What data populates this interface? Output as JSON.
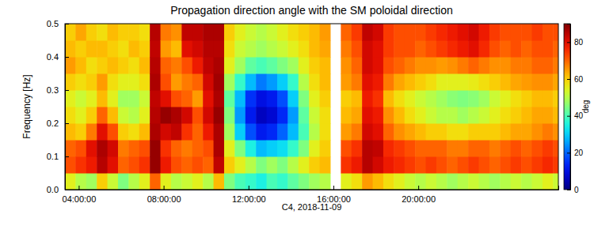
{
  "chart_data": {
    "type": "heatmap",
    "title": "Propagation direction angle with the SM poloidal direction",
    "x_label": "C4, 2018-11-09",
    "y_label": "Frequency [Hz]",
    "x": [
      3.35,
      3.85,
      4.35,
      4.85,
      5.35,
      5.85,
      6.35,
      6.85,
      7.35,
      7.85,
      8.35,
      8.85,
      9.35,
      9.85,
      10.35,
      10.85,
      11.35,
      11.85,
      12.35,
      12.85,
      13.35,
      13.85,
      14.35,
      14.85,
      15.35,
      15.85,
      16.35,
      16.85,
      17.35,
      17.85,
      18.35,
      18.85,
      19.35,
      19.85,
      20.35,
      20.85,
      21.35,
      21.85,
      22.35,
      22.85,
      23.35,
      23.85,
      24.35,
      24.85,
      25.35,
      25.85,
      26.35
    ],
    "y": [
      0,
      0.05,
      0.1,
      0.15,
      0.2,
      0.25,
      0.3,
      0.35,
      0.4,
      0.45
    ],
    "values": [
      [
        55,
        72,
        70,
        62,
        58,
        55,
        60,
        65,
        62,
        60
      ],
      [
        50,
        75,
        72,
        60,
        55,
        52,
        58,
        62,
        60,
        64
      ],
      [
        48,
        78,
        80,
        68,
        60,
        55,
        60,
        58,
        62,
        60
      ],
      [
        60,
        85,
        86,
        80,
        70,
        62,
        65,
        60,
        62,
        58
      ],
      [
        52,
        80,
        82,
        72,
        62,
        55,
        58,
        62,
        60,
        62
      ],
      [
        45,
        70,
        68,
        60,
        52,
        48,
        55,
        60,
        58,
        60
      ],
      [
        50,
        72,
        70,
        58,
        50,
        48,
        55,
        58,
        62,
        60
      ],
      [
        55,
        75,
        72,
        62,
        55,
        52,
        58,
        62,
        60,
        58
      ],
      [
        70,
        88,
        88,
        86,
        85,
        84,
        86,
        85,
        84,
        85
      ],
      [
        55,
        78,
        75,
        82,
        88,
        80,
        72,
        70,
        65,
        68
      ],
      [
        50,
        72,
        70,
        84,
        86,
        72,
        65,
        68,
        62,
        66
      ],
      [
        52,
        70,
        68,
        75,
        82,
        70,
        68,
        72,
        80,
        84
      ],
      [
        55,
        72,
        70,
        70,
        72,
        65,
        70,
        78,
        82,
        84
      ],
      [
        50,
        70,
        72,
        78,
        82,
        80,
        82,
        84,
        85,
        86
      ],
      [
        62,
        84,
        86,
        86,
        88,
        86,
        87,
        86,
        85,
        86
      ],
      [
        45,
        60,
        55,
        48,
        45,
        42,
        48,
        55,
        58,
        60
      ],
      [
        40,
        55,
        45,
        30,
        25,
        28,
        38,
        48,
        52,
        55
      ],
      [
        38,
        50,
        35,
        18,
        12,
        15,
        28,
        42,
        50,
        52
      ],
      [
        35,
        45,
        28,
        12,
        6,
        10,
        22,
        40,
        48,
        50
      ],
      [
        40,
        48,
        30,
        14,
        8,
        12,
        25,
        42,
        50,
        52
      ],
      [
        38,
        45,
        32,
        20,
        14,
        18,
        30,
        45,
        52,
        55
      ],
      [
        42,
        50,
        38,
        28,
        25,
        30,
        38,
        48,
        55,
        58
      ],
      [
        45,
        55,
        45,
        40,
        42,
        45,
        50,
        55,
        58,
        60
      ],
      [
        48,
        60,
        55,
        50,
        52,
        55,
        58,
        60,
        62,
        62
      ],
      [
        50,
        62,
        60,
        58,
        58,
        60,
        62,
        62,
        64,
        65
      ],
      [
        null,
        null,
        null,
        null,
        null,
        null,
        null,
        null,
        null,
        null
      ],
      [
        55,
        75,
        72,
        65,
        62,
        60,
        65,
        66,
        68,
        70
      ],
      [
        58,
        78,
        75,
        68,
        64,
        62,
        68,
        70,
        72,
        74
      ],
      [
        65,
        85,
        85,
        82,
        80,
        78,
        80,
        82,
        82,
        84
      ],
      [
        62,
        82,
        84,
        80,
        78,
        75,
        78,
        80,
        80,
        82
      ],
      [
        58,
        78,
        76,
        70,
        66,
        62,
        68,
        72,
        74,
        74
      ],
      [
        55,
        76,
        74,
        66,
        62,
        58,
        64,
        70,
        72,
        72
      ],
      [
        52,
        74,
        72,
        64,
        58,
        55,
        62,
        68,
        72,
        72
      ],
      [
        50,
        72,
        70,
        62,
        55,
        52,
        60,
        66,
        70,
        72
      ],
      [
        52,
        74,
        70,
        60,
        52,
        50,
        58,
        66,
        72,
        74
      ],
      [
        50,
        72,
        70,
        60,
        50,
        48,
        55,
        65,
        74,
        76
      ],
      [
        48,
        70,
        68,
        58,
        50,
        46,
        55,
        66,
        76,
        78
      ],
      [
        50,
        72,
        68,
        58,
        48,
        45,
        55,
        68,
        78,
        80
      ],
      [
        52,
        74,
        70,
        60,
        50,
        46,
        56,
        70,
        80,
        82
      ],
      [
        50,
        72,
        70,
        60,
        52,
        48,
        58,
        68,
        76,
        78
      ],
      [
        48,
        70,
        68,
        60,
        55,
        52,
        60,
        66,
        72,
        74
      ],
      [
        50,
        72,
        70,
        62,
        58,
        55,
        62,
        66,
        70,
        72
      ],
      [
        52,
        74,
        72,
        64,
        60,
        58,
        64,
        68,
        72,
        72
      ],
      [
        50,
        72,
        70,
        64,
        62,
        60,
        65,
        68,
        70,
        72
      ],
      [
        52,
        74,
        72,
        66,
        64,
        62,
        66,
        70,
        72,
        74
      ],
      [
        55,
        76,
        74,
        68,
        64,
        62,
        66,
        70,
        72,
        72
      ],
      [
        52,
        74,
        72,
        66,
        62,
        60,
        64,
        68,
        70,
        72
      ]
    ],
    "xlim": [
      3.35,
      26.6
    ],
    "xticks": [
      {
        "value": 4,
        "label": "04:00:00"
      },
      {
        "value": 8,
        "label": "08:00:00"
      },
      {
        "value": 12,
        "label": "12:00:00"
      },
      {
        "value": 16,
        "label": "16:00:00"
      },
      {
        "value": 20,
        "label": "20:00:00"
      }
    ],
    "ylim": [
      0,
      0.5
    ],
    "yticks": [
      {
        "value": 0,
        "label": "0.0"
      },
      0.1,
      0.2,
      0.3,
      0.4,
      0.5
    ],
    "colorbar": {
      "label": "deg",
      "range": [
        0,
        90
      ],
      "ticks": [
        0,
        20,
        40,
        60,
        80
      ]
    }
  }
}
